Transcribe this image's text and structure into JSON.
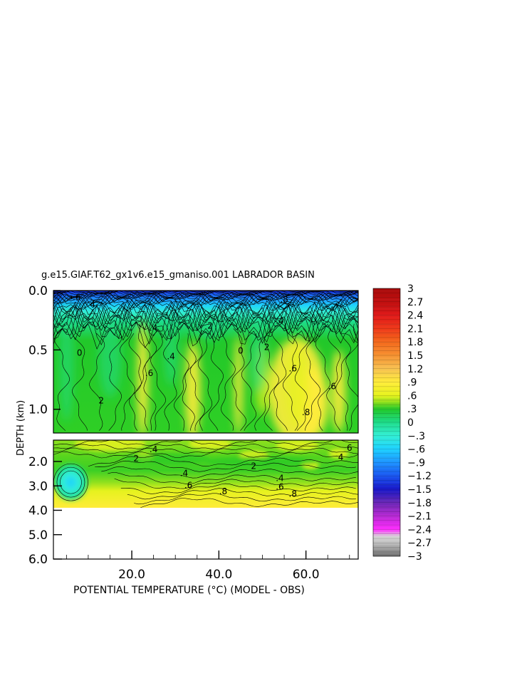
{
  "chart_data": {
    "type": "heatmap",
    "title": "g.e15.GIAF.T62_gx1v6.e15_gmaniso.001 LABRADOR BASIN",
    "xlabel": "POTENTIAL TEMPERATURE (°C) (MODEL - OBS)",
    "ylabel": "DEPTH (km)",
    "xlim": [
      2,
      72
    ],
    "x_ticks": [
      {
        "value": 20,
        "label": "20.0"
      },
      {
        "value": 40,
        "label": "40.0"
      },
      {
        "value": 60,
        "label": "60.0"
      }
    ],
    "upper_panel": {
      "ylim": [
        0,
        1.2
      ],
      "y_ticks": [
        {
          "value": 0.0,
          "label": "0.0"
        },
        {
          "value": 0.5,
          "label": "0.5"
        },
        {
          "value": 1.0,
          "label": "1.0"
        }
      ]
    },
    "lower_panel": {
      "ylim": [
        1.2,
        6.0
      ],
      "y_ticks": [
        {
          "value": 2.0,
          "label": "2.0"
        },
        {
          "value": 3.0,
          "label": "3.0"
        },
        {
          "value": 4.0,
          "label": "4.0"
        },
        {
          "value": 5.0,
          "label": "5.0"
        },
        {
          "value": 6.0,
          "label": "6.0"
        }
      ],
      "data_bottom": 3.9
    },
    "upper_contour_labels": [
      {
        "x": 7,
        "y": 0.08,
        "text": "-.6"
      },
      {
        "x": 11,
        "y": 0.14,
        "text": "4"
      },
      {
        "x": 25,
        "y": 0.34,
        "text": ".4"
      },
      {
        "x": 8,
        "y": 0.55,
        "text": "0"
      },
      {
        "x": 24,
        "y": 0.72,
        "text": ".6"
      },
      {
        "x": 29,
        "y": 0.58,
        "text": ".4"
      },
      {
        "x": 13,
        "y": 0.95,
        "text": "2"
      },
      {
        "x": 38,
        "y": 0.32,
        "text": "2"
      },
      {
        "x": 45,
        "y": 0.53,
        "text": "0"
      },
      {
        "x": 51,
        "y": 0.5,
        "text": "2"
      },
      {
        "x": 54,
        "y": 0.28,
        "text": ".4"
      },
      {
        "x": 57,
        "y": 0.68,
        "text": ".6"
      },
      {
        "x": 66,
        "y": 0.83,
        "text": ".6"
      },
      {
        "x": 60,
        "y": 1.05,
        "text": ".8"
      },
      {
        "x": 55,
        "y": 0.1,
        "text": ".8"
      }
    ],
    "lower_contour_labels": [
      {
        "x": 21,
        "y": 2.0,
        "text": "2"
      },
      {
        "x": 25,
        "y": 1.65,
        "text": ".4"
      },
      {
        "x": 32,
        "y": 2.6,
        "text": ".4"
      },
      {
        "x": 33,
        "y": 3.1,
        "text": ".6"
      },
      {
        "x": 41,
        "y": 3.35,
        "text": ".8"
      },
      {
        "x": 48,
        "y": 2.3,
        "text": "2"
      },
      {
        "x": 54,
        "y": 2.8,
        "text": ".4"
      },
      {
        "x": 54,
        "y": 3.15,
        "text": ".6"
      },
      {
        "x": 57,
        "y": 3.45,
        "text": ".8"
      },
      {
        "x": 68,
        "y": 1.95,
        "text": "4"
      },
      {
        "x": 70,
        "y": 1.6,
        "text": "6"
      }
    ],
    "colorbar": {
      "min": -3,
      "max": 3,
      "labels": [
        "3",
        "2.7",
        "2.4",
        "2.1",
        "1.8",
        "1.5",
        "1.2",
        ".9",
        ".6",
        ".3",
        "0",
        "−.3",
        "−.6",
        "−.9",
        "−1.2",
        "−1.5",
        "−1.8",
        "−2.1",
        "−2.4",
        "−2.7",
        "−3"
      ],
      "stops": [
        {
          "value": -3.0,
          "color": "#6e6e6e"
        },
        {
          "value": -2.7,
          "color": "#c0c0c0"
        },
        {
          "value": -2.55,
          "color": "#d8d8d8"
        },
        {
          "value": -2.4,
          "color": "#ff2cff"
        },
        {
          "value": -2.1,
          "color": "#b82ad4"
        },
        {
          "value": -1.8,
          "color": "#6a28b6"
        },
        {
          "value": -1.5,
          "color": "#1a18c8"
        },
        {
          "value": -1.2,
          "color": "#1a55f0"
        },
        {
          "value": -0.9,
          "color": "#1e94ff"
        },
        {
          "value": -0.6,
          "color": "#1ed0ff"
        },
        {
          "value": -0.3,
          "color": "#33efd6"
        },
        {
          "value": 0.0,
          "color": "#1edc8a"
        },
        {
          "value": 0.3,
          "color": "#22c82a"
        },
        {
          "value": 0.45,
          "color": "#8ee01e"
        },
        {
          "value": 0.6,
          "color": "#e6f21e"
        },
        {
          "value": 0.9,
          "color": "#ffec3a"
        },
        {
          "value": 1.2,
          "color": "#f7c252"
        },
        {
          "value": 1.5,
          "color": "#f69232"
        },
        {
          "value": 1.8,
          "color": "#f46a1c"
        },
        {
          "value": 2.1,
          "color": "#ee3a1a"
        },
        {
          "value": 2.4,
          "color": "#e01a1a"
        },
        {
          "value": 2.7,
          "color": "#c01010"
        },
        {
          "value": 3.0,
          "color": "#a80a0a"
        }
      ]
    }
  }
}
